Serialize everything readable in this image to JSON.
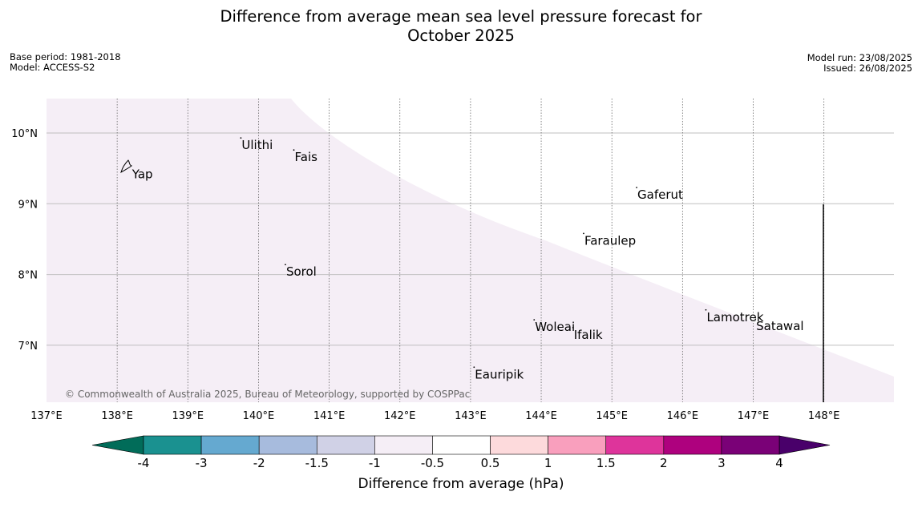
{
  "title": {
    "line1": "Difference from average mean sea level pressure forecast for",
    "line2": "October 2025"
  },
  "info_left": {
    "base_period": "Base period: 1981-2018",
    "model": "Model: ACCESS-S2"
  },
  "info_right": {
    "model_run": "Model run: 23/08/2025",
    "issued": "Issued: 26/08/2025"
  },
  "map": {
    "lat_labels": [
      "10°N",
      "9°N",
      "8°N",
      "7°N"
    ],
    "lon_labels": [
      "137°E",
      "138°E",
      "139°E",
      "140°E",
      "141°E",
      "142°E",
      "143°E",
      "144°E",
      "145°E",
      "146°E",
      "147°E",
      "148°E"
    ],
    "places": [
      {
        "name": "Yap",
        "lon": 138.2,
        "lat": 9.52
      },
      {
        "name": "Ulithi",
        "lon": 139.75,
        "lat": 9.93
      },
      {
        "name": "Fais",
        "lon": 140.5,
        "lat": 9.76
      },
      {
        "name": "Gaferut",
        "lon": 145.35,
        "lat": 9.23
      },
      {
        "name": "Faraulep",
        "lon": 144.6,
        "lat": 8.58
      },
      {
        "name": "Sorol",
        "lon": 140.38,
        "lat": 8.14
      },
      {
        "name": "Lamotrek",
        "lon": 146.33,
        "lat": 7.5
      },
      {
        "name": "Woleai",
        "lon": 143.9,
        "lat": 7.36
      },
      {
        "name": "Ifalik",
        "lon": 144.45,
        "lat": 7.25
      },
      {
        "name": "Satawal",
        "lon": 147.03,
        "lat": 7.37
      },
      {
        "name": "Eauripik",
        "lon": 143.05,
        "lat": 6.69
      }
    ],
    "copyright": "© Commonwealth of Australia 2025, Bureau of Meteorology, supported by COSPPac",
    "anomaly_fill_color": "#f5eef6"
  },
  "colorbar": {
    "title": "Difference from average (hPa)",
    "ticks": [
      "-4",
      "-3",
      "-2",
      "-1.5",
      "-1",
      "-0.5",
      "0.5",
      "1",
      "1.5",
      "2",
      "3",
      "4"
    ],
    "colors": [
      "#1a9190",
      "#65a9d0",
      "#a7bbdd",
      "#d0d1e6",
      "#f5eef6",
      "#ffffff",
      "#fddadc",
      "#f99fbd",
      "#de349b",
      "#ae017e",
      "#7a0177"
    ],
    "under_color": "#016c59",
    "over_color": "#49006a"
  }
}
